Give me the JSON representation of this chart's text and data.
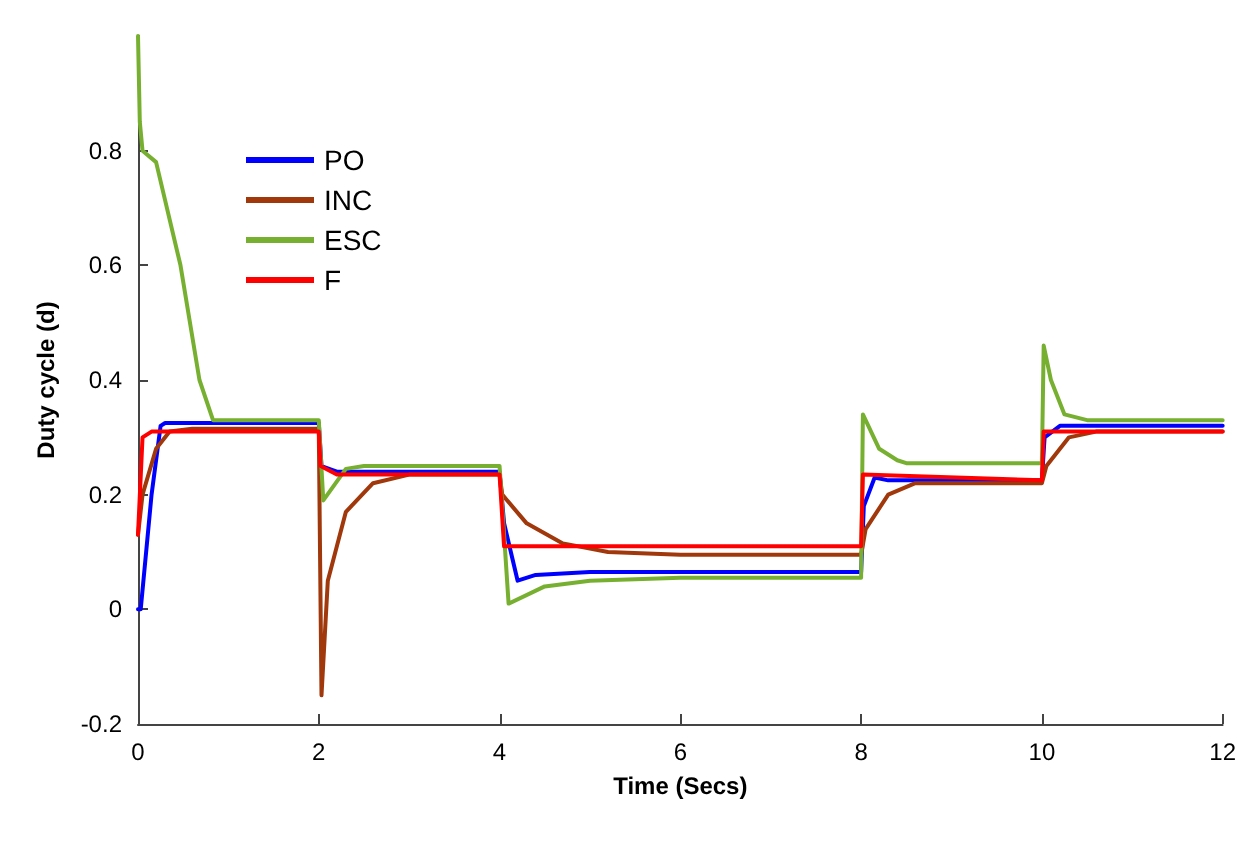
{
  "chart_data": {
    "type": "line",
    "xlabel": "Time (Secs)",
    "ylabel": "Duty cycle (d)",
    "xlim": [
      0,
      12
    ],
    "ylim": [
      -0.2,
      1
    ],
    "xticks": [
      0,
      2,
      4,
      6,
      8,
      10,
      12
    ],
    "yticks": [
      -0.2,
      0,
      0.2,
      0.4,
      0.6,
      0.8
    ],
    "grid": false,
    "legend": "top left",
    "marker": "none",
    "line_style": "solid",
    "series": [
      {
        "name": "PO",
        "color": "#0000ff",
        "x": [
          0,
          0.03,
          0.15,
          0.25,
          0.3,
          2,
          2.03,
          2.2,
          4,
          4.05,
          4.2,
          4.4,
          5,
          8,
          8.03,
          8.15,
          8.3,
          10,
          10.03,
          10.2,
          12
        ],
        "values": [
          0,
          0,
          0.2,
          0.32,
          0.325,
          0.325,
          0.25,
          0.24,
          0.24,
          0.15,
          0.05,
          0.06,
          0.065,
          0.065,
          0.18,
          0.23,
          0.225,
          0.225,
          0.3,
          0.32,
          0.32
        ]
      },
      {
        "name": "INC",
        "color": "#a0380c",
        "x": [
          0,
          0.05,
          0.2,
          0.35,
          0.6,
          2,
          2.03,
          2.1,
          2.3,
          2.6,
          3,
          4,
          4.03,
          4.3,
          4.7,
          5.2,
          6,
          8,
          8.05,
          8.3,
          8.6,
          10,
          10.05,
          10.3,
          10.6,
          12
        ],
        "values": [
          0.13,
          0.2,
          0.28,
          0.31,
          0.315,
          0.315,
          -0.15,
          0.05,
          0.17,
          0.22,
          0.235,
          0.235,
          0.2,
          0.15,
          0.115,
          0.1,
          0.095,
          0.095,
          0.14,
          0.2,
          0.22,
          0.22,
          0.25,
          0.3,
          0.31,
          0.31
        ]
      },
      {
        "name": "ESC",
        "color": "#77b030",
        "x": [
          0,
          0.02,
          0.05,
          0.2,
          0.47,
          0.68,
          0.83,
          2,
          2.05,
          2.3,
          2.5,
          4,
          4.1,
          4.5,
          5,
          6,
          8,
          8.02,
          8.2,
          8.4,
          8.5,
          10,
          10.02,
          10.1,
          10.25,
          10.5,
          12
        ],
        "values": [
          1,
          0.85,
          0.8,
          0.78,
          0.6,
          0.4,
          0.33,
          0.33,
          0.19,
          0.245,
          0.25,
          0.25,
          0.01,
          0.04,
          0.05,
          0.055,
          0.055,
          0.34,
          0.28,
          0.26,
          0.255,
          0.255,
          0.46,
          0.4,
          0.34,
          0.33,
          0.33
        ]
      },
      {
        "name": "F",
        "color": "#ff0000",
        "x": [
          0,
          0.05,
          0.15,
          2,
          2.02,
          2.2,
          4,
          4.05,
          8,
          8.02,
          10,
          10.02,
          12
        ],
        "values": [
          0.13,
          0.3,
          0.31,
          0.31,
          0.25,
          0.235,
          0.235,
          0.11,
          0.11,
          0.235,
          0.225,
          0.31,
          0.31
        ]
      }
    ]
  }
}
